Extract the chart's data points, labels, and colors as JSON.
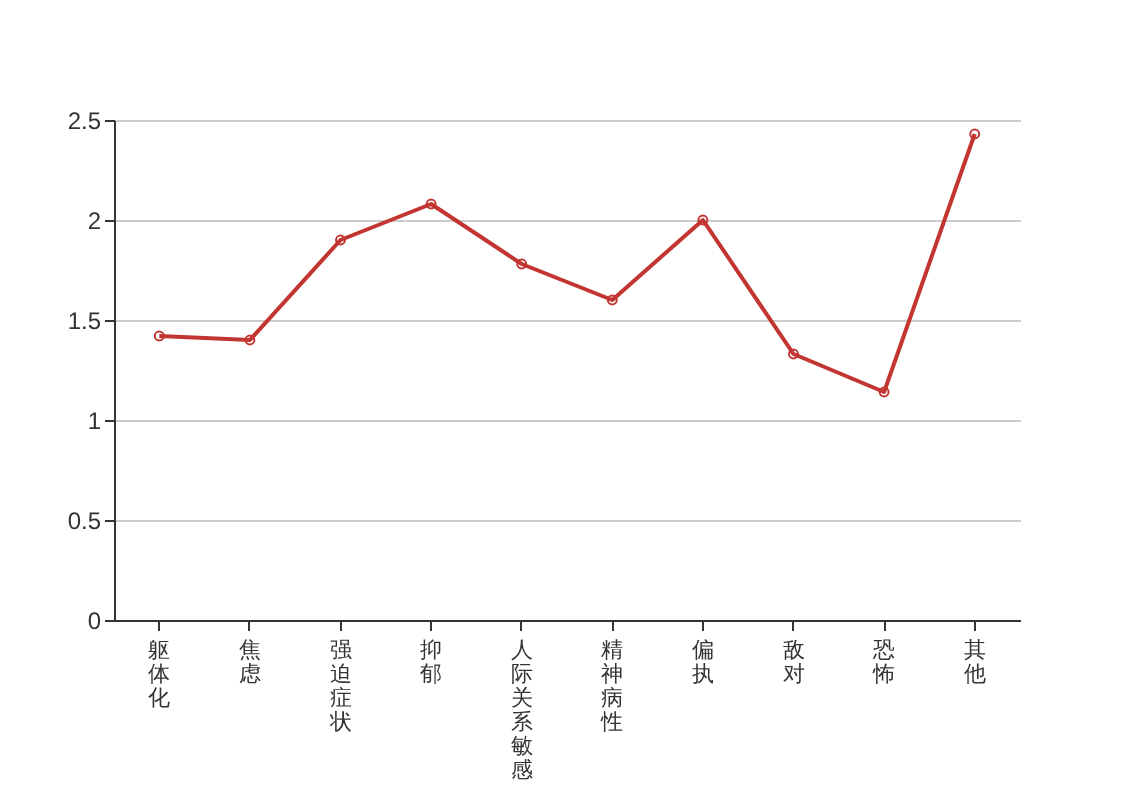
{
  "chart_data": {
    "type": "line",
    "categories": [
      "躯体化",
      "焦虑",
      "强迫症状",
      "抑郁",
      "人际关系敏感",
      "精神病性",
      "偏执",
      "敌对",
      "恐怖",
      "其他"
    ],
    "series": [
      {
        "color": "#c23531",
        "values": [
          1.42,
          1.4,
          1.9,
          2.08,
          1.78,
          1.6,
          2.0,
          1.33,
          1.14,
          2.43
        ]
      }
    ],
    "ylim": [
      0,
      2.5
    ],
    "yticks": [
      0,
      0.5,
      1,
      1.5,
      2,
      2.5
    ],
    "grid": "y",
    "marker": "circle",
    "line_style": "solid"
  }
}
